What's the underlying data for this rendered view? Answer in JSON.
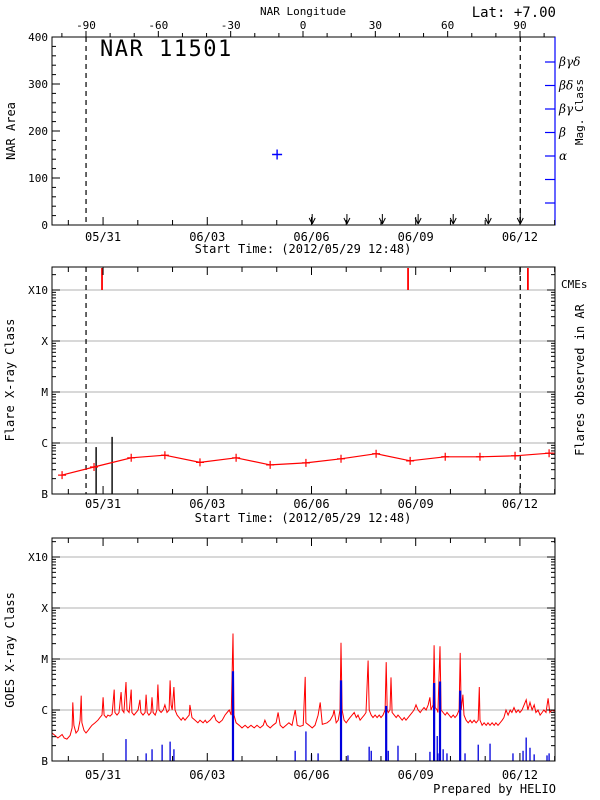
{
  "header": {
    "lat_label": "Lat:  +7.00"
  },
  "colors": {
    "red": "#ff0000",
    "blue": "#0000ff",
    "flare_blue": "#0000dd",
    "grid_gray": "#b0b0b0",
    "black": "#000000"
  },
  "time_axis": {
    "start_time_label": "Start Time: (2012/05/29 12:48)",
    "t_range_days": [
      0,
      14.48
    ],
    "major_ticks": [
      {
        "t": 1.47,
        "label": "05/31"
      },
      {
        "t": 4.47,
        "label": "06/03"
      },
      {
        "t": 7.47,
        "label": "06/06"
      },
      {
        "t": 10.47,
        "label": "06/09"
      },
      {
        "t": 13.47,
        "label": "06/12"
      }
    ],
    "minor_tick_first_t": 0.47,
    "minor_tick_step_days": 1
  },
  "chart_data": [
    {
      "id": "nar-area-panel",
      "type": "scatter",
      "title": "NAR 11501",
      "ylabel": "NAR Area",
      "ylim": [
        0,
        400
      ],
      "yticks": [
        0,
        100,
        200,
        300,
        400
      ],
      "y_minor_step": 20,
      "top_axis_label": "NAR Longitude",
      "longitude_ticks": [
        -90,
        -60,
        -30,
        0,
        30,
        60,
        90
      ],
      "longitude_minor_step": 10,
      "mag_axis_label": "Mag. Class",
      "mag_class_tick_labels": [
        "βγδ",
        "βδ",
        "βγ",
        "β",
        "α"
      ],
      "area_points": [
        {
          "t": 6.48,
          "area": 150
        }
      ],
      "limb_crossing_t": [
        0.98,
        13.48
      ],
      "event_arrow_t": [
        7.49,
        8.49,
        9.51,
        10.54,
        11.55,
        12.56,
        13.48
      ]
    },
    {
      "id": "flare-class-panel",
      "type": "line",
      "ylabel": "Flare X-ray Class",
      "ytick_labels": [
        "B",
        "C",
        "M",
        "X",
        "X10"
      ],
      "y_log_range": [
        -7,
        -3
      ],
      "right_label": "Flares observed in AR",
      "cme_label": "CMEs",
      "cme_t": [
        1.44,
        10.25,
        13.7
      ],
      "ar_flares": [
        {
          "t": 1.27,
          "log10_flux": -6.08
        },
        {
          "t": 1.73,
          "log10_flux": -5.88
        }
      ],
      "background_curve": [
        [
          0.29,
          -6.63
        ],
        [
          1.21,
          -6.47
        ],
        [
          2.28,
          -6.29
        ],
        [
          3.25,
          -6.24
        ],
        [
          4.26,
          -6.38
        ],
        [
          5.3,
          -6.29
        ],
        [
          6.28,
          -6.43
        ],
        [
          7.31,
          -6.39
        ],
        [
          8.32,
          -6.31
        ],
        [
          9.33,
          -6.21
        ],
        [
          10.31,
          -6.35
        ],
        [
          11.32,
          -6.27
        ],
        [
          12.32,
          -6.27
        ],
        [
          13.33,
          -6.25
        ],
        [
          14.31,
          -6.2
        ],
        [
          14.48,
          -6.2
        ]
      ],
      "limb_crossing_t": [
        0.98,
        13.48
      ]
    },
    {
      "id": "goes-flux-panel",
      "type": "line",
      "ylabel": "GOES X-ray Class",
      "ytick_labels": [
        "B",
        "C",
        "M",
        "X",
        "X10"
      ],
      "y_log_range": [
        -7,
        -3
      ],
      "credit": "Prepared by HELIO",
      "flux_curve": [
        [
          0.0,
          -6.45
        ],
        [
          0.09,
          -6.5
        ],
        [
          0.17,
          -6.55
        ],
        [
          0.29,
          -6.48
        ],
        [
          0.35,
          -6.55
        ],
        [
          0.43,
          -6.57
        ],
        [
          0.52,
          -6.5
        ],
        [
          0.58,
          -6.35
        ],
        [
          0.6,
          -5.85
        ],
        [
          0.63,
          -6.3
        ],
        [
          0.69,
          -6.45
        ],
        [
          0.75,
          -6.4
        ],
        [
          0.81,
          -6.2
        ],
        [
          0.84,
          -5.72
        ],
        [
          0.86,
          -6.25
        ],
        [
          0.92,
          -6.4
        ],
        [
          0.98,
          -6.45
        ],
        [
          1.04,
          -6.4
        ],
        [
          1.09,
          -6.35
        ],
        [
          1.15,
          -6.3
        ],
        [
          1.24,
          -6.25
        ],
        [
          1.32,
          -6.2
        ],
        [
          1.38,
          -6.15
        ],
        [
          1.44,
          -6.1
        ],
        [
          1.47,
          -5.75
        ],
        [
          1.5,
          -6.1
        ],
        [
          1.56,
          -6.15
        ],
        [
          1.61,
          -6.1
        ],
        [
          1.67,
          -6.12
        ],
        [
          1.73,
          -6.08
        ],
        [
          1.79,
          -5.6
        ],
        [
          1.81,
          -6.05
        ],
        [
          1.87,
          -6.1
        ],
        [
          1.93,
          -6.05
        ],
        [
          1.99,
          -5.65
        ],
        [
          2.02,
          -6.0
        ],
        [
          2.07,
          -6.05
        ],
        [
          2.13,
          -5.45
        ],
        [
          2.16,
          -6.0
        ],
        [
          2.22,
          -6.05
        ],
        [
          2.28,
          -5.6
        ],
        [
          2.3,
          -6.05
        ],
        [
          2.36,
          -6.1
        ],
        [
          2.42,
          -6.05
        ],
        [
          2.48,
          -6.0
        ],
        [
          2.53,
          -5.8
        ],
        [
          2.56,
          -6.05
        ],
        [
          2.62,
          -6.1
        ],
        [
          2.68,
          -6.05
        ],
        [
          2.71,
          -5.7
        ],
        [
          2.74,
          -6.05
        ],
        [
          2.79,
          -6.1
        ],
        [
          2.85,
          -6.05
        ],
        [
          2.88,
          -5.75
        ],
        [
          2.91,
          -6.05
        ],
        [
          2.97,
          -6.1
        ],
        [
          3.02,
          -6.0
        ],
        [
          3.05,
          -5.5
        ],
        [
          3.08,
          -6.0
        ],
        [
          3.14,
          -6.05
        ],
        [
          3.2,
          -6.0
        ],
        [
          3.25,
          -5.9
        ],
        [
          3.31,
          -6.05
        ],
        [
          3.37,
          -6.0
        ],
        [
          3.4,
          -5.42
        ],
        [
          3.43,
          -5.9
        ],
        [
          3.46,
          -6.0
        ],
        [
          3.51,
          -5.55
        ],
        [
          3.54,
          -6.0
        ],
        [
          3.6,
          -6.1
        ],
        [
          3.66,
          -6.15
        ],
        [
          3.72,
          -6.2
        ],
        [
          3.77,
          -6.15
        ],
        [
          3.83,
          -6.2
        ],
        [
          3.89,
          -6.15
        ],
        [
          3.95,
          -6.1
        ],
        [
          3.97,
          -5.9
        ],
        [
          4.03,
          -6.15
        ],
        [
          4.12,
          -6.2
        ],
        [
          4.2,
          -6.25
        ],
        [
          4.26,
          -6.2
        ],
        [
          4.35,
          -6.25
        ],
        [
          4.41,
          -6.2
        ],
        [
          4.46,
          -6.25
        ],
        [
          4.55,
          -6.2
        ],
        [
          4.61,
          -6.15
        ],
        [
          4.67,
          -6.1
        ],
        [
          4.72,
          -6.2
        ],
        [
          4.81,
          -6.25
        ],
        [
          4.9,
          -6.2
        ],
        [
          4.98,
          -6.1
        ],
        [
          5.04,
          -6.05
        ],
        [
          5.1,
          -6.0
        ],
        [
          5.16,
          -6.1
        ],
        [
          5.21,
          -4.5
        ],
        [
          5.24,
          -6.1
        ],
        [
          5.3,
          -6.25
        ],
        [
          5.39,
          -6.3
        ],
        [
          5.47,
          -6.35
        ],
        [
          5.56,
          -6.3
        ],
        [
          5.64,
          -6.35
        ],
        [
          5.73,
          -6.3
        ],
        [
          5.82,
          -6.35
        ],
        [
          5.9,
          -6.3
        ],
        [
          5.99,
          -6.35
        ],
        [
          6.08,
          -6.3
        ],
        [
          6.13,
          -6.2
        ],
        [
          6.19,
          -6.3
        ],
        [
          6.28,
          -6.35
        ],
        [
          6.36,
          -6.3
        ],
        [
          6.45,
          -6.25
        ],
        [
          6.51,
          -6.05
        ],
        [
          6.57,
          -6.3
        ],
        [
          6.65,
          -6.35
        ],
        [
          6.74,
          -6.3
        ],
        [
          6.82,
          -6.25
        ],
        [
          6.91,
          -6.3
        ],
        [
          7.0,
          -6.0
        ],
        [
          7.06,
          -6.3
        ],
        [
          7.14,
          -6.32
        ],
        [
          7.23,
          -6.3
        ],
        [
          7.29,
          -5.35
        ],
        [
          7.31,
          -6.25
        ],
        [
          7.4,
          -6.3
        ],
        [
          7.49,
          -6.35
        ],
        [
          7.57,
          -6.3
        ],
        [
          7.66,
          -6.1
        ],
        [
          7.72,
          -5.85
        ],
        [
          7.78,
          -6.28
        ],
        [
          7.92,
          -6.25
        ],
        [
          8.01,
          -6.2
        ],
        [
          8.09,
          -6.1
        ],
        [
          8.12,
          -6.0
        ],
        [
          8.18,
          -6.25
        ],
        [
          8.24,
          -6.2
        ],
        [
          8.29,
          -6.0
        ],
        [
          8.32,
          -4.68
        ],
        [
          8.35,
          -6.0
        ],
        [
          8.41,
          -6.2
        ],
        [
          8.47,
          -6.25
        ],
        [
          8.52,
          -6.2
        ],
        [
          8.58,
          -6.15
        ],
        [
          8.64,
          -6.1
        ],
        [
          8.7,
          -6.05
        ],
        [
          8.76,
          -6.15
        ],
        [
          8.81,
          -6.1
        ],
        [
          8.87,
          -6.2
        ],
        [
          8.93,
          -6.15
        ],
        [
          8.99,
          -6.1
        ],
        [
          9.04,
          -6.05
        ],
        [
          9.1,
          -5.03
        ],
        [
          9.13,
          -6.0
        ],
        [
          9.19,
          -6.1
        ],
        [
          9.24,
          -6.15
        ],
        [
          9.3,
          -6.1
        ],
        [
          9.36,
          -6.15
        ],
        [
          9.42,
          -6.1
        ],
        [
          9.47,
          -6.15
        ],
        [
          9.53,
          -6.1
        ],
        [
          9.59,
          -6.0
        ],
        [
          9.62,
          -5.06
        ],
        [
          9.65,
          -6.0
        ],
        [
          9.68,
          -6.05
        ],
        [
          9.73,
          -6.0
        ],
        [
          9.76,
          -5.36
        ],
        [
          9.79,
          -6.05
        ],
        [
          9.85,
          -6.1
        ],
        [
          9.91,
          -6.15
        ],
        [
          9.96,
          -6.1
        ],
        [
          10.02,
          -6.15
        ],
        [
          10.08,
          -6.2
        ],
        [
          10.14,
          -6.15
        ],
        [
          10.19,
          -6.2
        ],
        [
          10.25,
          -6.15
        ],
        [
          10.31,
          -6.1
        ],
        [
          10.37,
          -6.05
        ],
        [
          10.42,
          -6.0
        ],
        [
          10.48,
          -5.9
        ],
        [
          10.54,
          -6.0
        ],
        [
          10.6,
          -6.05
        ],
        [
          10.65,
          -6.0
        ],
        [
          10.71,
          -5.95
        ],
        [
          10.77,
          -6.0
        ],
        [
          10.83,
          -5.9
        ],
        [
          10.88,
          -5.75
        ],
        [
          10.91,
          -6.0
        ],
        [
          10.97,
          -5.9
        ],
        [
          11.0,
          -4.73
        ],
        [
          11.03,
          -5.95
        ],
        [
          11.09,
          -6.0
        ],
        [
          11.11,
          -6.05
        ],
        [
          11.17,
          -4.75
        ],
        [
          11.2,
          -6.0
        ],
        [
          11.26,
          -6.05
        ],
        [
          11.32,
          -6.1
        ],
        [
          11.37,
          -6.05
        ],
        [
          11.43,
          -6.1
        ],
        [
          11.49,
          -6.15
        ],
        [
          11.55,
          -6.1
        ],
        [
          11.6,
          -6.15
        ],
        [
          11.66,
          -6.1
        ],
        [
          11.72,
          -6.0
        ],
        [
          11.75,
          -4.88
        ],
        [
          11.78,
          -6.0
        ],
        [
          11.83,
          -5.7
        ],
        [
          11.86,
          -6.1
        ],
        [
          11.92,
          -6.2
        ],
        [
          11.98,
          -6.25
        ],
        [
          12.04,
          -6.2
        ],
        [
          12.09,
          -6.25
        ],
        [
          12.15,
          -6.2
        ],
        [
          12.21,
          -6.25
        ],
        [
          12.27,
          -6.2
        ],
        [
          12.3,
          -5.55
        ],
        [
          12.32,
          -6.2
        ],
        [
          12.38,
          -6.3
        ],
        [
          12.44,
          -6.25
        ],
        [
          12.5,
          -6.3
        ],
        [
          12.55,
          -6.25
        ],
        [
          12.61,
          -6.3
        ],
        [
          12.67,
          -6.25
        ],
        [
          12.73,
          -6.3
        ],
        [
          12.78,
          -6.25
        ],
        [
          12.84,
          -6.3
        ],
        [
          12.9,
          -6.25
        ],
        [
          12.96,
          -6.2
        ],
        [
          13.01,
          -6.15
        ],
        [
          13.07,
          -6.0
        ],
        [
          13.13,
          -6.1
        ],
        [
          13.19,
          -6.0
        ],
        [
          13.24,
          -6.05
        ],
        [
          13.3,
          -5.95
        ],
        [
          13.36,
          -6.05
        ],
        [
          13.42,
          -6.0
        ],
        [
          13.47,
          -6.05
        ],
        [
          13.53,
          -6.0
        ],
        [
          13.59,
          -5.9
        ],
        [
          13.65,
          -5.8
        ],
        [
          13.7,
          -6.0
        ],
        [
          13.76,
          -5.85
        ],
        [
          13.82,
          -6.0
        ],
        [
          13.88,
          -5.9
        ],
        [
          13.93,
          -6.05
        ],
        [
          13.99,
          -6.0
        ],
        [
          14.05,
          -6.1
        ],
        [
          14.11,
          -6.05
        ],
        [
          14.16,
          -6.0
        ],
        [
          14.22,
          -6.05
        ],
        [
          14.28,
          -5.77
        ],
        [
          14.33,
          -6.05
        ],
        [
          14.39,
          -6.0
        ],
        [
          14.45,
          -6.02
        ],
        [
          14.48,
          -6.0
        ]
      ],
      "ar_flare_lines": [
        [
          2.13,
          -6.57
        ],
        [
          2.71,
          -6.85
        ],
        [
          2.88,
          -6.77
        ],
        [
          3.17,
          -6.68
        ],
        [
          3.4,
          -6.62
        ],
        [
          3.51,
          -6.77
        ],
        [
          5.21,
          -5.24
        ],
        [
          7.0,
          -6.8
        ],
        [
          7.31,
          -6.42
        ],
        [
          7.47,
          -6.87
        ],
        [
          7.66,
          -6.85
        ],
        [
          8.32,
          -5.42
        ],
        [
          8.52,
          -6.89
        ],
        [
          9.13,
          -6.72
        ],
        [
          9.19,
          -6.8
        ],
        [
          9.62,
          -5.92
        ],
        [
          9.68,
          -6.8
        ],
        [
          9.96,
          -6.7
        ],
        [
          10.88,
          -6.82
        ],
        [
          11.0,
          -5.47
        ],
        [
          11.09,
          -6.51
        ],
        [
          11.11,
          -6.85
        ],
        [
          11.17,
          -5.44
        ],
        [
          11.26,
          -6.77
        ],
        [
          11.37,
          -6.85
        ],
        [
          11.75,
          -5.62
        ],
        [
          11.89,
          -6.85
        ],
        [
          12.27,
          -6.68
        ],
        [
          12.61,
          -6.66
        ],
        [
          13.27,
          -6.85
        ],
        [
          13.56,
          -6.8
        ],
        [
          13.65,
          -6.54
        ],
        [
          13.76,
          -6.74
        ],
        [
          13.88,
          -6.87
        ],
        [
          14.25,
          -6.89
        ],
        [
          14.31,
          -6.85
        ]
      ]
    }
  ]
}
